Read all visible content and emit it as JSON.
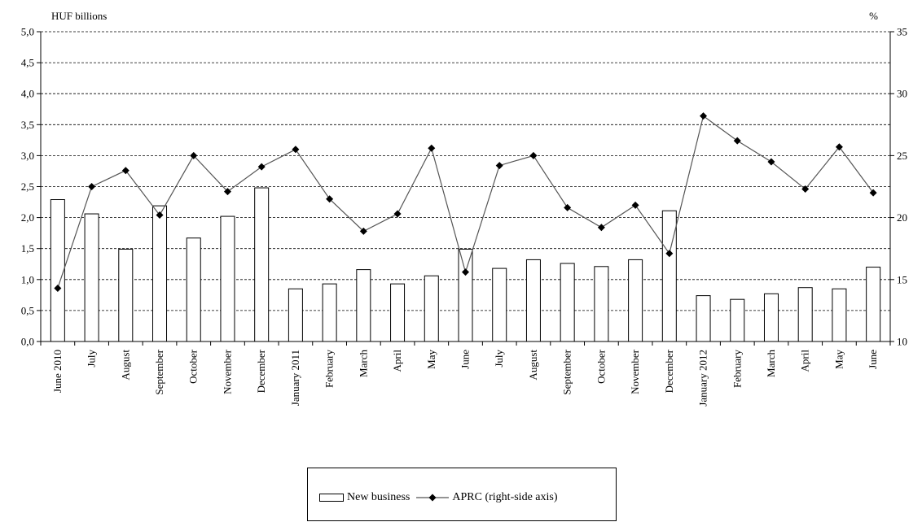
{
  "chart_data": {
    "type": "bar+line",
    "left_axis_unit": "HUF billions",
    "right_axis_unit": "%",
    "left_ylim": [
      0,
      5
    ],
    "right_ylim": [
      10,
      35
    ],
    "left_ticks": [
      "0,0",
      "0,5",
      "1,0",
      "1,5",
      "2,0",
      "2,5",
      "3,0",
      "3,5",
      "4,0",
      "4,5",
      "5,0"
    ],
    "right_ticks": [
      "10",
      "15",
      "20",
      "25",
      "30",
      "35"
    ],
    "grid": "horizontal dashed",
    "legend_position": "bottom-center",
    "categories": [
      "June 2010",
      "July",
      "August",
      "September",
      "October",
      "November",
      "December",
      "January 2011",
      "February",
      "March",
      "April",
      "May",
      "June",
      "July",
      "August",
      "September",
      "October",
      "November",
      "December",
      "January 2012",
      "February",
      "March",
      "April",
      "May",
      "June"
    ],
    "series": [
      {
        "name": "New business",
        "type": "bar",
        "axis": "left",
        "values": [
          2.29,
          2.06,
          1.49,
          2.19,
          1.67,
          2.02,
          2.48,
          0.85,
          0.93,
          1.16,
          0.93,
          1.06,
          1.49,
          1.18,
          1.32,
          1.26,
          1.21,
          1.32,
          2.11,
          0.74,
          0.68,
          0.77,
          0.87,
          0.85,
          1.2
        ]
      },
      {
        "name": "APRC (right-side axis)",
        "type": "line",
        "axis": "right",
        "values": [
          14.3,
          22.5,
          23.8,
          20.2,
          25.0,
          22.1,
          24.1,
          25.5,
          21.5,
          18.9,
          20.3,
          25.6,
          15.6,
          24.2,
          25.0,
          20.8,
          19.2,
          21.0,
          17.1,
          28.2,
          26.2,
          24.5,
          22.3,
          25.7,
          22.0
        ]
      }
    ]
  },
  "colors": {
    "bar_fill": "#ffffff",
    "bar_stroke": "#000000",
    "line": "#555555",
    "marker": "#000000",
    "grid": "#000000"
  }
}
